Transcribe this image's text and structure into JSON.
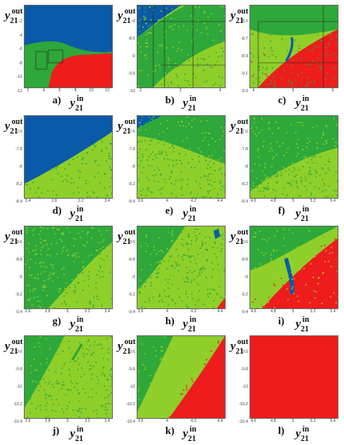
{
  "colors": {
    "blue": "#0a5aa8",
    "green": "#2ea83a",
    "lime": "#8fcf2a",
    "red": "#ee1c1c"
  },
  "axis_labels": {
    "y_base": "y",
    "y_sub": "21",
    "y_sup": "out",
    "x_base": "y",
    "x_sub": "21",
    "x_sup": "in"
  },
  "panels": [
    {
      "letter": "a)",
      "yticks": [
        "-2",
        "-4",
        "-6",
        "-8",
        "-10",
        "-12"
      ],
      "xticks": [
        "2",
        "4",
        "6",
        "8",
        "10",
        "12"
      ]
    },
    {
      "letter": "b)",
      "yticks": [
        "-8",
        "-8.5",
        "-9",
        "-9.5",
        "-10"
      ],
      "xticks": [
        "2",
        "3",
        "4"
      ]
    },
    {
      "letter": "c)",
      "yticks": [
        "-8.5",
        "-8.7",
        "-8.9",
        "-9.1",
        "-9.3"
      ],
      "xticks": [
        "4",
        "5",
        "6"
      ]
    },
    {
      "letter": "d)",
      "yticks": [
        "-7.6",
        "-7.8",
        "-8",
        "-8.2",
        "-8.4"
      ],
      "xticks": [
        "2.4",
        "2.8",
        "3.2",
        "3.4"
      ]
    },
    {
      "letter": "e)",
      "yticks": [
        "-7.6",
        "-7.8",
        "-8",
        "-8.2",
        "-8.4"
      ],
      "xticks": [
        "3.6",
        "4",
        "4.2",
        "4.4"
      ]
    },
    {
      "letter": "f)",
      "yticks": [
        "-7.6",
        "-7.8",
        "-8",
        "-8.2",
        "-8.4"
      ],
      "xticks": [
        "4.6",
        "4.8",
        "5",
        "5.2",
        "5.4"
      ]
    },
    {
      "letter": "g)",
      "yticks": [
        "-8.6",
        "-8.8",
        "-9",
        "-9.2",
        "-9.4"
      ],
      "xticks": [
        "2.6",
        "2.8",
        "3",
        "3.2",
        "3.4"
      ]
    },
    {
      "letter": "h)",
      "yticks": [
        "-8.6",
        "-8.8",
        "-9",
        "-9.2",
        "-9.4"
      ],
      "xticks": [
        "3.6",
        "4",
        "4.2",
        "4.4"
      ]
    },
    {
      "letter": "i)",
      "yticks": [
        "-8.6",
        "-8.8",
        "-9",
        "-9.2",
        "-9.4"
      ],
      "xticks": [
        "4.6",
        "4.8",
        "5",
        "5.2",
        "5.4"
      ]
    },
    {
      "letter": "j)",
      "yticks": [
        "-9.6",
        "-9.8",
        "-10",
        "-10.2",
        "-10.4"
      ],
      "xticks": [
        "2.6",
        "2.8",
        "3",
        "3.2",
        "3.4"
      ]
    },
    {
      "letter": "k)",
      "yticks": [
        "-9.6",
        "-9.8",
        "-10",
        "-10.2",
        "-10.4"
      ],
      "xticks": [
        "3.6",
        "4",
        "4.2",
        "4.4"
      ]
    },
    {
      "letter": "l)",
      "yticks": [
        "-9.6",
        "-9.8",
        "-10",
        "-10.2",
        "-10.4"
      ],
      "xticks": [
        "4.6",
        "4.8",
        "5",
        "5.2",
        "5.4"
      ]
    }
  ]
}
